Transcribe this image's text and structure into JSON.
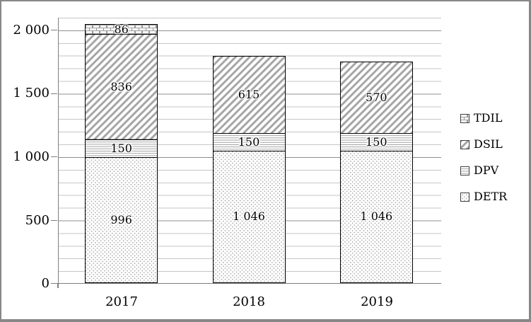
{
  "chart_data": {
    "type": "stacked-bar",
    "categories": [
      "2017",
      "2018",
      "2019"
    ],
    "series": [
      {
        "name": "DETR",
        "pattern": "dots",
        "values": [
          996,
          1046,
          1046
        ],
        "labels": [
          "996",
          "1 046",
          "1 046"
        ]
      },
      {
        "name": "DPV",
        "pattern": "hlines",
        "values": [
          150,
          150,
          150
        ],
        "labels": [
          "150",
          "150",
          "150"
        ]
      },
      {
        "name": "DSIL",
        "pattern": "diag",
        "values": [
          836,
          615,
          570
        ],
        "labels": [
          "836",
          "615",
          "570"
        ]
      },
      {
        "name": "TDIL",
        "pattern": "brick",
        "values": [
          86,
          0,
          0
        ],
        "labels": [
          "86",
          "",
          ""
        ]
      }
    ],
    "totals": [
      2068,
      1811,
      1766
    ],
    "y_axis": {
      "min": 0,
      "max": 2100,
      "minor_step": 100,
      "major_step": 500,
      "ticks": [
        {
          "value": 2000,
          "label": "2 000"
        },
        {
          "value": 1500,
          "label": "1 500"
        },
        {
          "value": 1000,
          "label": "1 000"
        },
        {
          "value": 500,
          "label": "500"
        },
        {
          "value": 0,
          "label": "0"
        }
      ]
    },
    "legend_items": [
      {
        "label": "TDIL",
        "pattern": "brick"
      },
      {
        "label": "DSIL",
        "pattern": "diag"
      },
      {
        "label": "DPV",
        "pattern": "hlines"
      },
      {
        "label": "DETR",
        "pattern": "dots"
      }
    ],
    "legend_position": "right",
    "grid": true,
    "title": "",
    "xlabel": "",
    "ylabel": "",
    "colors": {
      "pattern_gray": "#999999",
      "stripe_gray": "#a6a6a6",
      "dot_gray": "#8c8c8c",
      "gridline_minor": "#c6c6c6",
      "gridline_major": "#8f8f8f",
      "axis_line": "#7f7f7f",
      "bar_border": "#000000",
      "figure_border": "#878787"
    }
  }
}
